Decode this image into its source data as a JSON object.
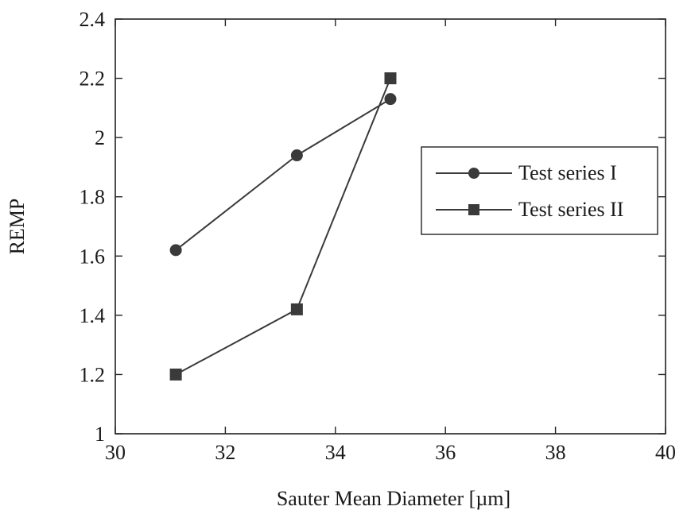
{
  "chart_data": {
    "type": "line",
    "xlabel": "Sauter Mean Diameter [µm]",
    "ylabel": "REMP",
    "xlim": [
      30,
      40
    ],
    "ylim": [
      1,
      2.4
    ],
    "x_ticks": [
      30,
      32,
      34,
      36,
      38,
      40
    ],
    "y_ticks": [
      1,
      1.2,
      1.4,
      1.6,
      1.8,
      2,
      2.2,
      2.4
    ],
    "x_tick_labels": [
      "30",
      "32",
      "34",
      "36",
      "38",
      "40"
    ],
    "y_tick_labels": [
      "1",
      "1.2",
      "1.4",
      "1.6",
      "1.8",
      "2",
      "2.2",
      "2.4"
    ],
    "grid": false,
    "legend_position": "right",
    "series": [
      {
        "name": "Test series I",
        "marker": "circle",
        "color": "#3a3a3a",
        "x": [
          31.1,
          33.3,
          35.0
        ],
        "y": [
          1.62,
          1.94,
          2.13
        ]
      },
      {
        "name": "Test series II",
        "marker": "square",
        "color": "#3a3a3a",
        "x": [
          31.1,
          33.3,
          35.0
        ],
        "y": [
          1.2,
          1.42,
          2.2
        ]
      }
    ]
  }
}
